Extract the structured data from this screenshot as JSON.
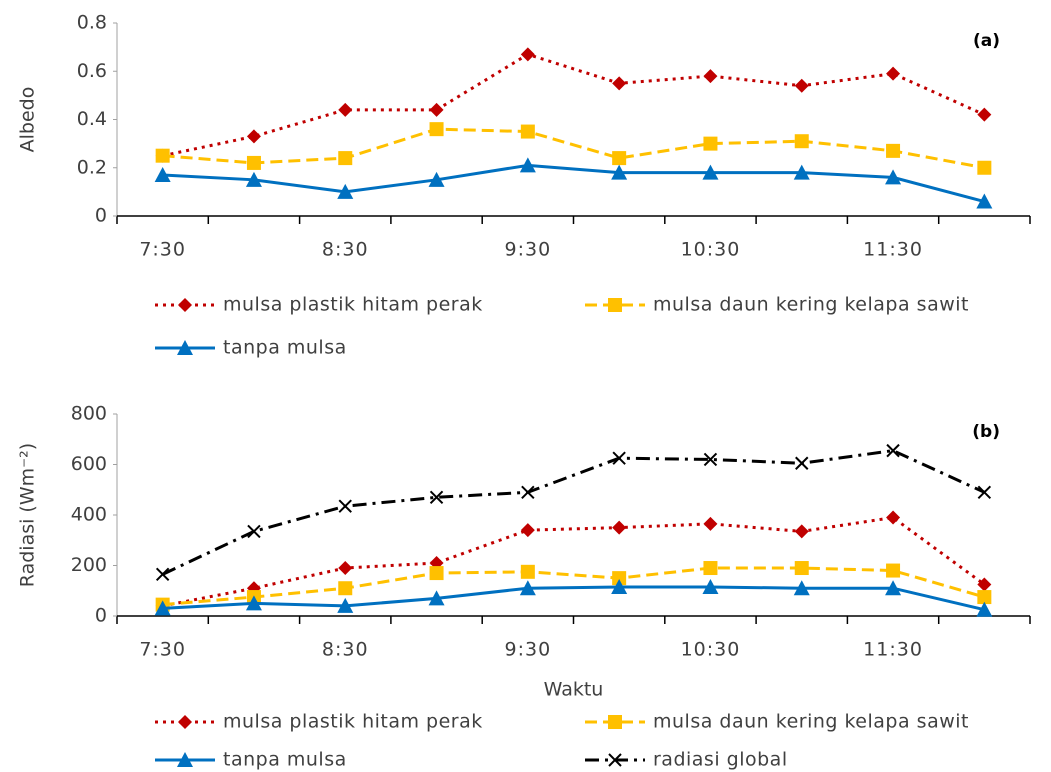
{
  "chart_data": [
    {
      "type": "line",
      "annotation": "(a)",
      "y_label": "Albedo",
      "categories": [
        "7:30",
        null,
        "8:30",
        null,
        "9:30",
        null,
        "10:30",
        null,
        "11:30",
        null
      ],
      "ylim": [
        0,
        0.8
      ],
      "yticks": [
        0,
        0.2,
        0.4,
        0.6,
        0.8
      ],
      "series": [
        {
          "name": "mulsa plastik hitam perak",
          "color": "#c00000",
          "line_style": "dotted",
          "marker": "diamond",
          "values": [
            0.25,
            0.33,
            0.44,
            0.44,
            0.67,
            0.55,
            0.58,
            0.54,
            0.59,
            0.42
          ]
        },
        {
          "name": "mulsa daun kering kelapa sawit",
          "color": "#ffc000",
          "line_style": "dashed",
          "marker": "square",
          "values": [
            0.25,
            0.22,
            0.24,
            0.36,
            0.35,
            0.24,
            0.3,
            0.31,
            0.27,
            0.2
          ]
        },
        {
          "name": "tanpa mulsa",
          "color": "#0070c0",
          "line_style": "solid",
          "marker": "triangle",
          "values": [
            0.17,
            0.15,
            0.1,
            0.15,
            0.21,
            0.18,
            0.18,
            0.18,
            0.16,
            0.06
          ]
        }
      ]
    },
    {
      "type": "line",
      "annotation": "(b)",
      "y_label": "Radiasi (Wm⁻²)",
      "x_label": "Waktu",
      "categories": [
        "7:30",
        null,
        "8:30",
        null,
        "9:30",
        null,
        "10:30",
        null,
        "11:30",
        null
      ],
      "ylim": [
        0,
        800
      ],
      "yticks": [
        0,
        200,
        400,
        600,
        800
      ],
      "series": [
        {
          "name": "mulsa plastik hitam perak",
          "color": "#c00000",
          "line_style": "dotted",
          "marker": "diamond",
          "values": [
            40,
            110,
            190,
            210,
            340,
            350,
            365,
            335,
            390,
            125
          ]
        },
        {
          "name": "mulsa daun kering kelapa sawit",
          "color": "#ffc000",
          "line_style": "dashed",
          "marker": "square",
          "values": [
            45,
            75,
            110,
            170,
            175,
            150,
            190,
            190,
            180,
            75
          ]
        },
        {
          "name": "tanpa mulsa",
          "color": "#0070c0",
          "line_style": "solid",
          "marker": "triangle",
          "values": [
            30,
            50,
            40,
            70,
            110,
            115,
            115,
            110,
            110,
            25
          ]
        },
        {
          "name": "radiasi global",
          "color": "#000000",
          "line_style": "dashdot",
          "marker": "x",
          "values": [
            165,
            335,
            435,
            470,
            490,
            625,
            620,
            605,
            655,
            490
          ]
        }
      ]
    }
  ]
}
